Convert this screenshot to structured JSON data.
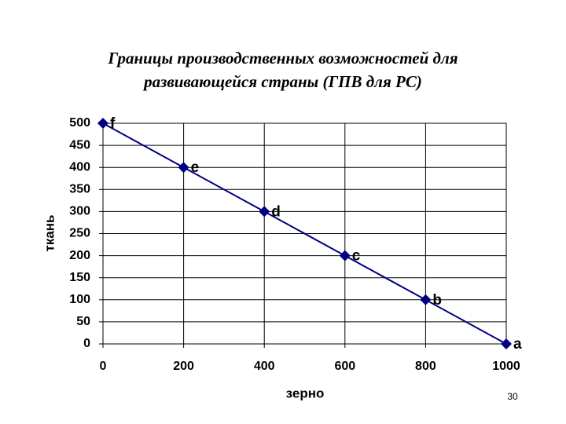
{
  "chart_data": {
    "type": "line",
    "title": [
      "Границы производственных возможностей для",
      "развивающейся страны (ГПВ для РС)"
    ],
    "x_label": "зерно",
    "y_label": "ткань",
    "x": [
      0,
      200,
      400,
      600,
      800,
      1000
    ],
    "series": [
      {
        "color": "#000080",
        "values": [
          500,
          400,
          300,
          200,
          100,
          0
        ],
        "point_labels": [
          "f",
          "e",
          "d",
          "c",
          "b",
          "a"
        ]
      }
    ],
    "xlim": [
      0,
      1000
    ],
    "xticks": [
      0,
      200,
      400,
      600,
      800,
      1000
    ],
    "ylim": [
      0,
      500
    ],
    "yticks": [
      0,
      50,
      100,
      150,
      200,
      250,
      300,
      350,
      400,
      450,
      500
    ],
    "grid": true
  },
  "page_number": "30"
}
